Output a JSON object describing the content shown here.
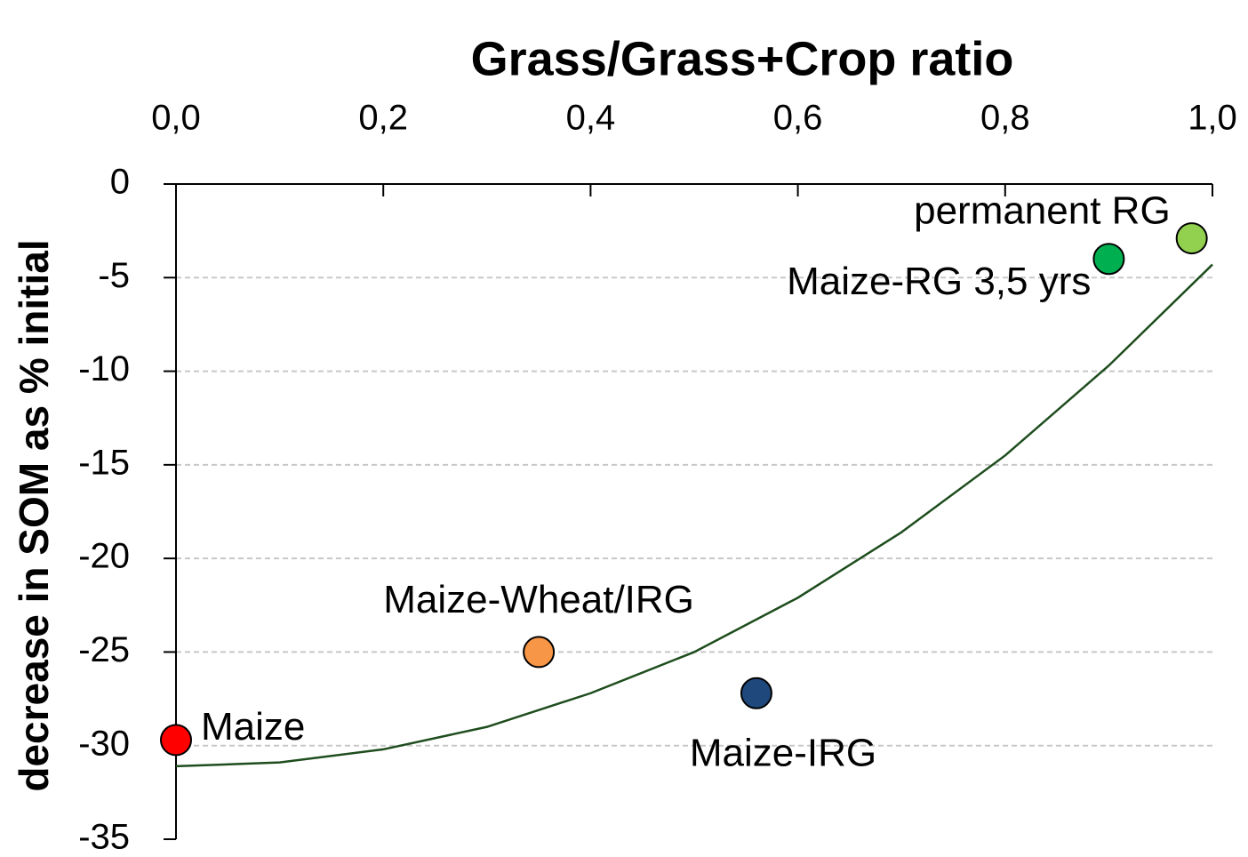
{
  "chart_data": {
    "type": "scatter",
    "title": "Grass/Grass+Crop ratio",
    "y_label": "decrease in SOM as % initial",
    "xlim": [
      0,
      1
    ],
    "ylim": [
      -35,
      0
    ],
    "xticks": [
      {
        "value": 0,
        "label": "0,0"
      },
      {
        "value": 0.2,
        "label": "0,2"
      },
      {
        "value": 0.4,
        "label": "0,4"
      },
      {
        "value": 0.6,
        "label": "0,6"
      },
      {
        "value": 0.8,
        "label": "0,8"
      },
      {
        "value": 1,
        "label": "1,0"
      }
    ],
    "yticks": [
      0,
      -5,
      -10,
      -15,
      -20,
      -25,
      -30,
      -35
    ],
    "grid": true,
    "series": [
      {
        "name": "Maize",
        "color": "#ff0000",
        "x": [
          0
        ],
        "values": [
          -29.7
        ]
      },
      {
        "name": "Maize-Wheat/IRG",
        "color": "#f79646",
        "x": [
          0.35
        ],
        "values": [
          -25.0
        ]
      },
      {
        "name": "Maize-IRG",
        "color": "#1f497d",
        "x": [
          0.56
        ],
        "values": [
          -27.2
        ]
      },
      {
        "name": "Maize-RG 3,5 yrs",
        "color": "#00b050",
        "x": [
          0.9
        ],
        "values": [
          -4.0
        ]
      },
      {
        "name": "permanent RG",
        "color": "#92d050",
        "x": [
          0.98
        ],
        "values": [
          -2.9
        ]
      }
    ],
    "trend": {
      "color": "#1e4d1e",
      "x": [
        0,
        0.1,
        0.2,
        0.3,
        0.4,
        0.5,
        0.6,
        0.7,
        0.8,
        0.9,
        1.0
      ],
      "values": [
        -31.1,
        -30.9,
        -30.2,
        -29.0,
        -27.2,
        -25.0,
        -22.1,
        -18.6,
        -14.5,
        -9.7,
        -4.3
      ]
    }
  }
}
